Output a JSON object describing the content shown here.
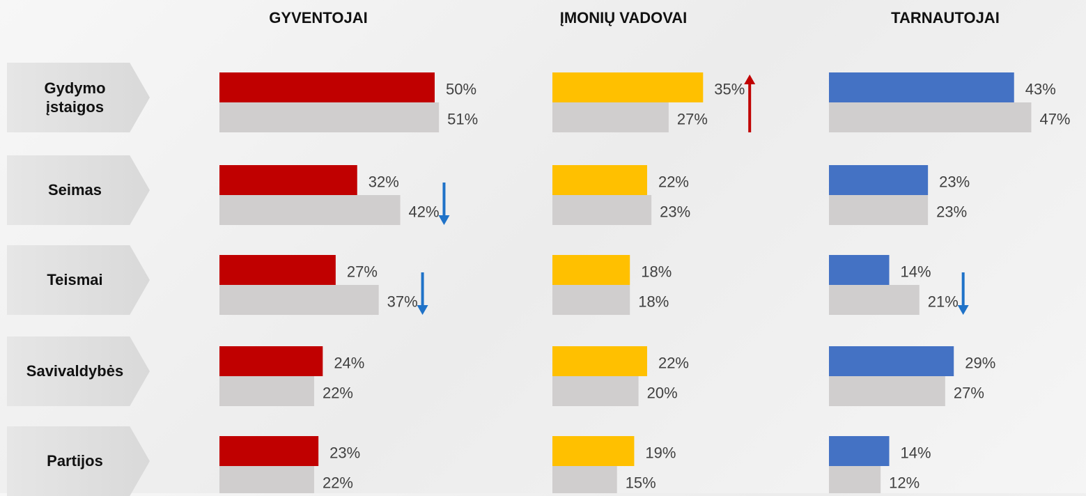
{
  "categories": [
    "Gydymo įstaigos",
    "Seimas",
    "Teismai",
    "Savivaldybės",
    "Partijos"
  ],
  "chart_data": [
    {
      "type": "bar",
      "orientation": "horizontal",
      "title": "GYVENTOJAI",
      "xlim": [
        0,
        100
      ],
      "series": [
        {
          "color": "#c00000",
          "values": [
            50,
            32,
            27,
            24,
            23
          ],
          "value_labels": [
            "50%",
            "32%",
            "27%",
            "24%",
            "23%"
          ]
        },
        {
          "color": "#d0cece",
          "values": [
            51,
            42,
            37,
            22,
            22
          ],
          "value_labels": [
            "51%",
            "42%",
            "37%",
            "22%",
            "22%"
          ]
        }
      ],
      "trends": [
        null,
        {
          "direction": "down",
          "color": "#1f72c8"
        },
        {
          "direction": "down",
          "color": "#1f72c8"
        },
        null,
        null
      ]
    },
    {
      "type": "bar",
      "orientation": "horizontal",
      "title": "ĮMONIŲ VADOVAI",
      "xlim": [
        0,
        100
      ],
      "series": [
        {
          "color": "#ffc000",
          "values": [
            35,
            22,
            18,
            22,
            19
          ],
          "value_labels": [
            "35%",
            "22%",
            "18%",
            "22%",
            "19%"
          ]
        },
        {
          "color": "#d0cece",
          "values": [
            27,
            23,
            18,
            20,
            15
          ],
          "value_labels": [
            "27%",
            "23%",
            "18%",
            "20%",
            "15%"
          ]
        }
      ],
      "trends": [
        {
          "direction": "up",
          "color": "#c00000"
        },
        null,
        null,
        null,
        null
      ]
    },
    {
      "type": "bar",
      "orientation": "horizontal",
      "title": "TARNAUTOJAI",
      "xlim": [
        0,
        100
      ],
      "series": [
        {
          "color": "#4472c4",
          "values": [
            43,
            23,
            14,
            29,
            14
          ],
          "value_labels": [
            "43%",
            "23%",
            "14%",
            "29%",
            "14%"
          ]
        },
        {
          "color": "#d0cece",
          "values": [
            47,
            23,
            21,
            27,
            12
          ],
          "value_labels": [
            "47%",
            "23%",
            "21%",
            "27%",
            "12%"
          ]
        }
      ],
      "trends": [
        null,
        null,
        {
          "direction": "down",
          "color": "#1f72c8"
        },
        null,
        null
      ]
    }
  ]
}
